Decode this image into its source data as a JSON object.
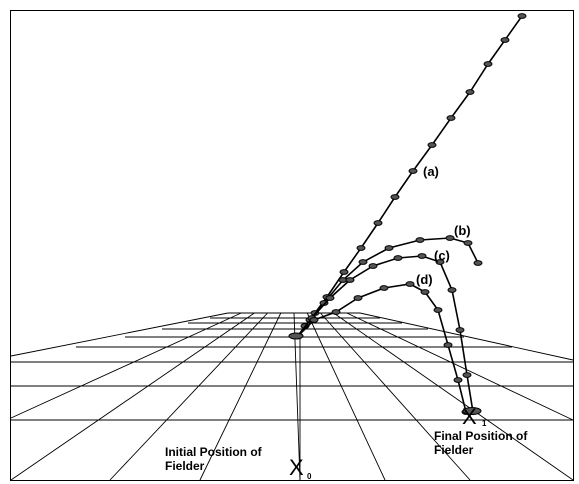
{
  "labels": {
    "traj_a": "(a)",
    "traj_b": "(b)",
    "traj_c": "(c)",
    "traj_d": "(d)",
    "initial_line1": "Initial Position of",
    "initial_line2": "Fielder",
    "final_line1": "Final Position of",
    "final_line2": "Fielder",
    "x0_mark": "X",
    "x0_sub": "0",
    "x1_mark": "X",
    "x1_sub": "1"
  },
  "trajectories": [
    {
      "name": "a",
      "kind": "straight"
    },
    {
      "name": "b",
      "kind": "arc"
    },
    {
      "name": "c",
      "kind": "arc"
    },
    {
      "name": "d",
      "kind": "arc"
    }
  ],
  "colors": {
    "line": "#000000",
    "marker_fill": "#555555",
    "background": "#ffffff"
  }
}
